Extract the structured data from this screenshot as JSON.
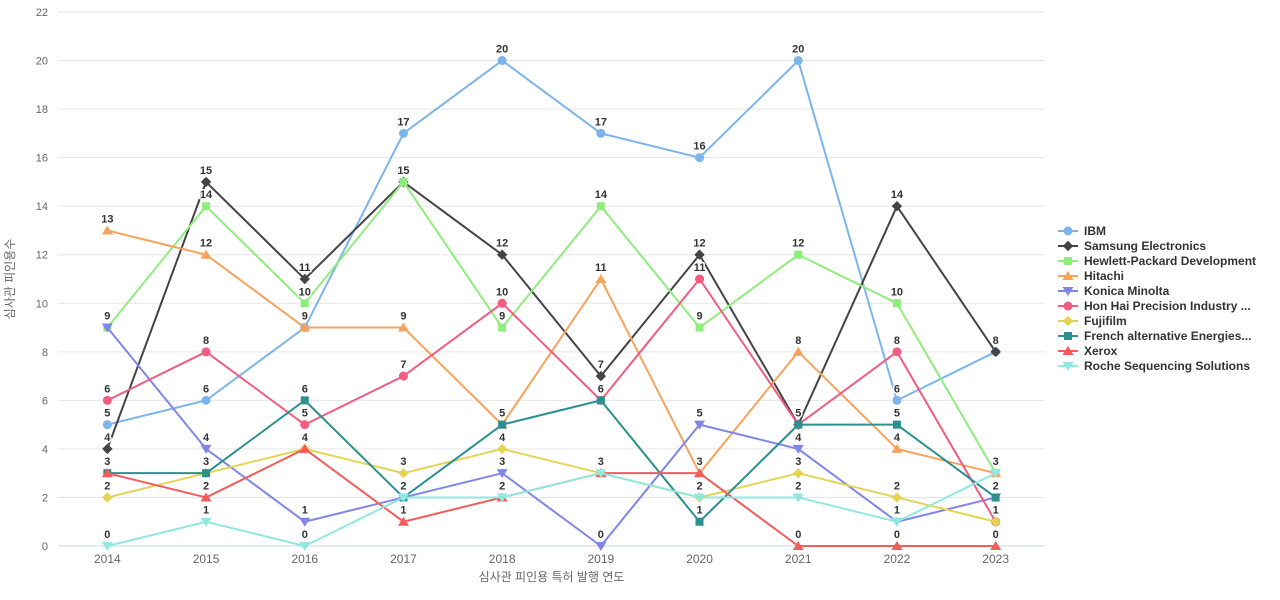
{
  "chart_data": {
    "type": "line",
    "title": "",
    "xlabel": "심사관 피인용 특허 발행 연도",
    "ylabel": "심사관 피인용수",
    "categories": [
      "2014",
      "2015",
      "2016",
      "2017",
      "2018",
      "2019",
      "2020",
      "2021",
      "2022",
      "2023"
    ],
    "ylim": [
      0,
      22
    ],
    "yticks": [
      0,
      2,
      4,
      6,
      8,
      10,
      12,
      14,
      16,
      18,
      20,
      22
    ],
    "grid": "horizontal",
    "legend_position": "right",
    "data_labels": true,
    "series": [
      {
        "name": "IBM",
        "color": "#7cb5ec",
        "marker": "circle",
        "values": [
          5,
          6,
          9,
          17,
          20,
          17,
          16,
          20,
          6,
          8
        ]
      },
      {
        "name": "Samsung Electronics",
        "color": "#434348",
        "marker": "diamond",
        "values": [
          4,
          15,
          11,
          15,
          12,
          7,
          12,
          5,
          14,
          8
        ]
      },
      {
        "name": "Hewlett-Packard Development",
        "color": "#90ed7d",
        "marker": "square",
        "values": [
          9,
          14,
          10,
          15,
          9,
          14,
          9,
          12,
          10,
          3
        ]
      },
      {
        "name": "Hitachi",
        "color": "#f7a35c",
        "marker": "triangle",
        "values": [
          13,
          12,
          9,
          9,
          5,
          11,
          3,
          8,
          4,
          3
        ]
      },
      {
        "name": "Konica Minolta",
        "color": "#8085e9",
        "marker": "triangle-down",
        "values": [
          9,
          4,
          1,
          2,
          3,
          0,
          5,
          4,
          1,
          2
        ]
      },
      {
        "name": "Hon Hai Precision Industry ...",
        "color": "#f15c80",
        "marker": "circle",
        "values": [
          6,
          8,
          5,
          7,
          10,
          6,
          11,
          5,
          8,
          1
        ]
      },
      {
        "name": "Fujifilm",
        "color": "#e4d354",
        "marker": "diamond",
        "values": [
          2,
          3,
          4,
          3,
          4,
          3,
          2,
          3,
          2,
          1
        ]
      },
      {
        "name": "French alternative Energies...",
        "color": "#2b908f",
        "marker": "square",
        "values": [
          3,
          3,
          6,
          2,
          5,
          6,
          1,
          5,
          5,
          2
        ]
      },
      {
        "name": "Xerox",
        "color": "#f45b5b",
        "marker": "triangle",
        "values": [
          3,
          2,
          4,
          1,
          2,
          3,
          3,
          0,
          0,
          0
        ]
      },
      {
        "name": "Roche Sequencing Solutions",
        "color": "#91e8e1",
        "marker": "triangle-down",
        "values": [
          0,
          1,
          0,
          2,
          2,
          3,
          2,
          2,
          1,
          3
        ]
      }
    ]
  }
}
